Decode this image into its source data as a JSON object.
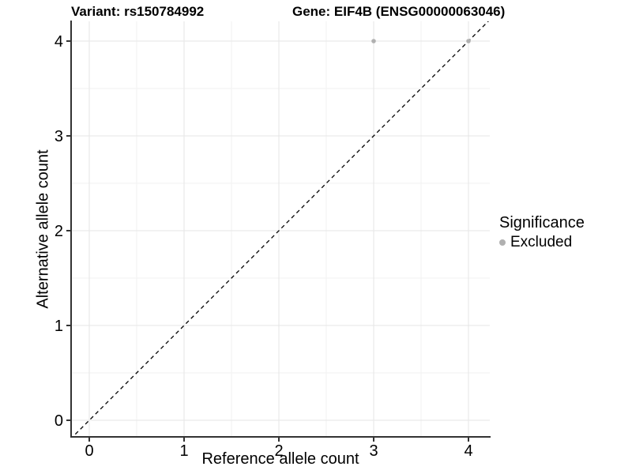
{
  "figure": {
    "title_left": "Variant: rs150784992",
    "title_right": "Gene: EIF4B (ENSG00000063046)"
  },
  "chart_data": {
    "type": "scatter",
    "title": "Variant: rs150784992 — Gene: EIF4B (ENSG00000063046)",
    "xlabel": "Reference allele count",
    "ylabel": "Alternative allele count",
    "xlim": [
      -0.2,
      4.25
    ],
    "ylim": [
      -0.2,
      4.25
    ],
    "x_ticks": [
      0,
      1,
      2,
      3,
      4
    ],
    "y_ticks": [
      0,
      1,
      2,
      3,
      4
    ],
    "x_minor_ticks": [
      0.5,
      1.5,
      2.5,
      3.5
    ],
    "y_minor_ticks": [
      0.5,
      1.5,
      2.5,
      3.5
    ],
    "grid": true,
    "series": [
      {
        "name": "Excluded",
        "color": "#b0b0b0",
        "points": [
          {
            "x": 3,
            "y": 4
          },
          {
            "x": 4,
            "y": 4
          }
        ]
      }
    ],
    "reference_line": {
      "type": "identity y=x",
      "style": "dashed",
      "color": "#000000"
    },
    "legend": {
      "title": "Significance",
      "position": "right",
      "entries": [
        {
          "label": "Excluded",
          "color": "#b0b0b0",
          "marker": "circle"
        }
      ]
    }
  },
  "colors": {
    "background": "#ffffff",
    "axis_line": "#333333",
    "grid_major": "#e5e5e5",
    "grid_minor": "#f2f2f2",
    "point_gray": "#b0b0b0",
    "text": "#000000"
  }
}
